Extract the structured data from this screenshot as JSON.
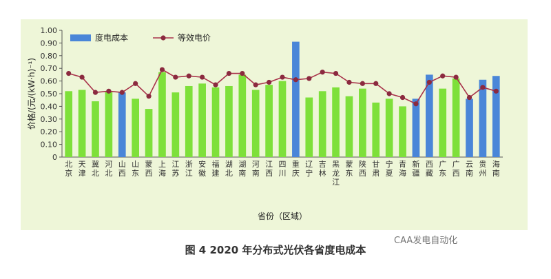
{
  "caption": "图 4  2020 年分布式光伏各省度电成本",
  "watermark": "CAA发电自动化",
  "colors": {
    "panel_bg": "#eef6d8",
    "bar_green": "#7ee03a",
    "bar_blue": "#4a86d8",
    "line": "#a8324a",
    "marker": "#8b2a3f"
  },
  "chart_data": {
    "type": "bar",
    "title": "",
    "xlabel": "省份（区域）",
    "ylabel": "价格/(元/(kW·h)⁻¹)",
    "ylim": [
      0,
      1.0
    ],
    "yticks": [
      "0",
      "0.10",
      "0.20",
      "0.30",
      "0.40",
      "0.50",
      "0.60",
      "0.70",
      "0.80",
      "0.90",
      "1.00"
    ],
    "legend_position": "top-left",
    "categories": [
      "北京",
      "天津",
      "冀北",
      "河北",
      "山西",
      "山东",
      "蒙西",
      "上海",
      "江苏",
      "浙江",
      "安徽",
      "福建",
      "湖北",
      "湖南",
      "河南",
      "江西",
      "四川",
      "重庆",
      "辽宁",
      "吉林",
      "黑龙江",
      "蒙东",
      "陕西",
      "甘肃",
      "宁夏",
      "青海",
      "新疆",
      "西藏",
      "广东",
      "广西",
      "云南",
      "贵州",
      "海南"
    ],
    "series": [
      {
        "name": "度电成本",
        "type": "bar",
        "values": [
          0.52,
          0.53,
          0.44,
          0.52,
          0.51,
          0.46,
          0.38,
          0.67,
          0.51,
          0.56,
          0.58,
          0.55,
          0.56,
          0.65,
          0.53,
          0.57,
          0.6,
          0.91,
          0.47,
          0.52,
          0.55,
          0.48,
          0.54,
          0.43,
          0.46,
          0.4,
          0.46,
          0.65,
          0.54,
          0.62,
          0.46,
          0.61,
          0.64
        ],
        "colors": [
          "green",
          "green",
          "green",
          "green",
          "blue",
          "green",
          "green",
          "green",
          "green",
          "green",
          "green",
          "green",
          "green",
          "green",
          "green",
          "green",
          "green",
          "blue",
          "green",
          "green",
          "green",
          "green",
          "green",
          "green",
          "green",
          "green",
          "blue",
          "blue",
          "green",
          "green",
          "blue",
          "blue",
          "blue"
        ]
      },
      {
        "name": "等效电价",
        "type": "line",
        "values": [
          0.66,
          0.63,
          0.51,
          0.52,
          0.51,
          0.58,
          0.48,
          0.69,
          0.63,
          0.64,
          0.63,
          0.57,
          0.66,
          0.66,
          0.57,
          0.59,
          0.63,
          0.61,
          0.62,
          0.67,
          0.66,
          0.59,
          0.58,
          0.58,
          0.5,
          0.47,
          0.42,
          0.59,
          0.64,
          0.63,
          0.47,
          0.55,
          0.52
        ]
      }
    ]
  }
}
